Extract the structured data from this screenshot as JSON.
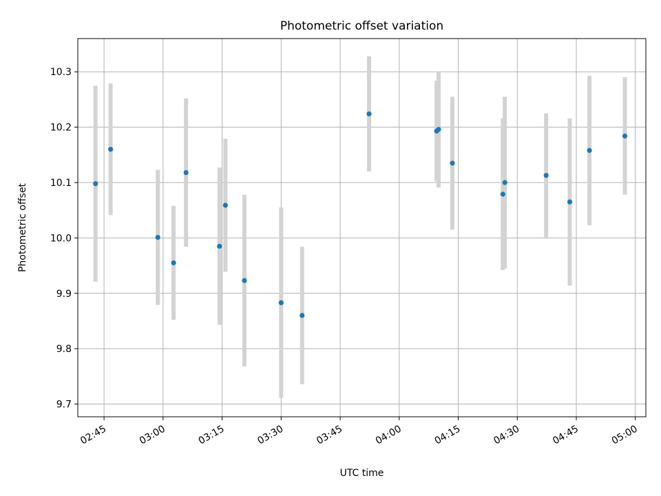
{
  "chart_data": {
    "type": "scatter",
    "title": "Photometric offset variation",
    "xlabel": "UTC time",
    "ylabel": "Photometric offset",
    "x_unit": "UTC time (HH:MM)",
    "xlim": [
      "02:38:20",
      "05:02:40"
    ],
    "ylim": [
      9.677,
      10.36
    ],
    "x_ticks": [
      "02:45",
      "03:00",
      "03:15",
      "03:30",
      "03:45",
      "04:00",
      "04:15",
      "04:30",
      "04:45",
      "05:00"
    ],
    "y_ticks": [
      9.7,
      9.8,
      9.9,
      10.0,
      10.1,
      10.2,
      10.3
    ],
    "y_tick_labels": [
      "9.7",
      "9.8",
      "9.9",
      "10.0",
      "10.1",
      "10.2",
      "10.3"
    ],
    "grid": true,
    "series": [
      {
        "marker_color": "#1f77b4",
        "errorbar_color": "#d3d3d3",
        "points": [
          {
            "x": "02:42:50",
            "y": 10.098,
            "err": 0.177
          },
          {
            "x": "02:46:40",
            "y": 10.16,
            "err": 0.119
          },
          {
            "x": "02:58:40",
            "y": 10.001,
            "err": 0.122
          },
          {
            "x": "03:02:40",
            "y": 9.955,
            "err": 0.103
          },
          {
            "x": "03:05:50",
            "y": 10.118,
            "err": 0.134
          },
          {
            "x": "03:14:20",
            "y": 9.985,
            "err": 0.142
          },
          {
            "x": "03:15:50",
            "y": 10.059,
            "err": 0.12
          },
          {
            "x": "03:20:40",
            "y": 9.923,
            "err": 0.155
          },
          {
            "x": "03:30:00",
            "y": 9.883,
            "err": 0.172
          },
          {
            "x": "03:35:20",
            "y": 9.86,
            "err": 0.124
          },
          {
            "x": "03:52:20",
            "y": 10.224,
            "err": 0.104
          },
          {
            "x": "04:09:30",
            "y": 10.193,
            "err": 0.091
          },
          {
            "x": "04:10:00",
            "y": 10.196,
            "err": 0.105
          },
          {
            "x": "04:13:30",
            "y": 10.135,
            "err": 0.12
          },
          {
            "x": "04:26:20",
            "y": 10.079,
            "err": 0.137
          },
          {
            "x": "04:26:50",
            "y": 10.1,
            "err": 0.155
          },
          {
            "x": "04:37:20",
            "y": 10.113,
            "err": 0.112
          },
          {
            "x": "04:43:20",
            "y": 10.065,
            "err": 0.151
          },
          {
            "x": "04:48:20",
            "y": 10.158,
            "err": 0.135
          },
          {
            "x": "04:57:20",
            "y": 10.184,
            "err": 0.106
          }
        ]
      }
    ]
  }
}
